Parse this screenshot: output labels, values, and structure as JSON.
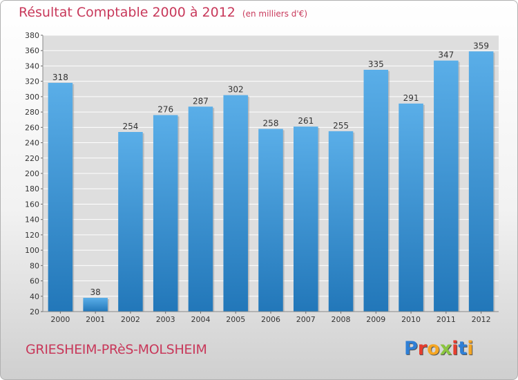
{
  "title": "Résultat Comptable 2000 à 2012",
  "subtitle": "(en milliers d'€)",
  "commune": "GRIESHEIM-PRèS-MOLSHEIM",
  "logo": {
    "letters": [
      "P",
      "r",
      "o",
      "x",
      "i",
      "t",
      "i"
    ],
    "colors": [
      "#2e7fd6",
      "#e53d2e",
      "#f5a623",
      "#8bc540",
      "#e53d2e",
      "#2e7fd6",
      "#f5a623"
    ]
  },
  "colors": {
    "title": "#c8385a",
    "bar_light": "#5aaee8",
    "bar_dark": "#2277b9",
    "grid": "#ffffff",
    "plot_bg": "#dedede"
  },
  "chart_data": {
    "type": "bar",
    "categories": [
      "2000",
      "2001",
      "2002",
      "2003",
      "2004",
      "2005",
      "2006",
      "2007",
      "2008",
      "2009",
      "2010",
      "2011",
      "2012"
    ],
    "values": [
      318,
      38,
      254,
      276,
      287,
      302,
      258,
      261,
      255,
      335,
      291,
      347,
      359
    ],
    "yticks": [
      20,
      40,
      60,
      80,
      100,
      120,
      140,
      160,
      180,
      200,
      220,
      240,
      260,
      280,
      300,
      320,
      340,
      360,
      380
    ],
    "ylim": [
      20,
      380
    ],
    "grid": true,
    "data_labels": true
  }
}
